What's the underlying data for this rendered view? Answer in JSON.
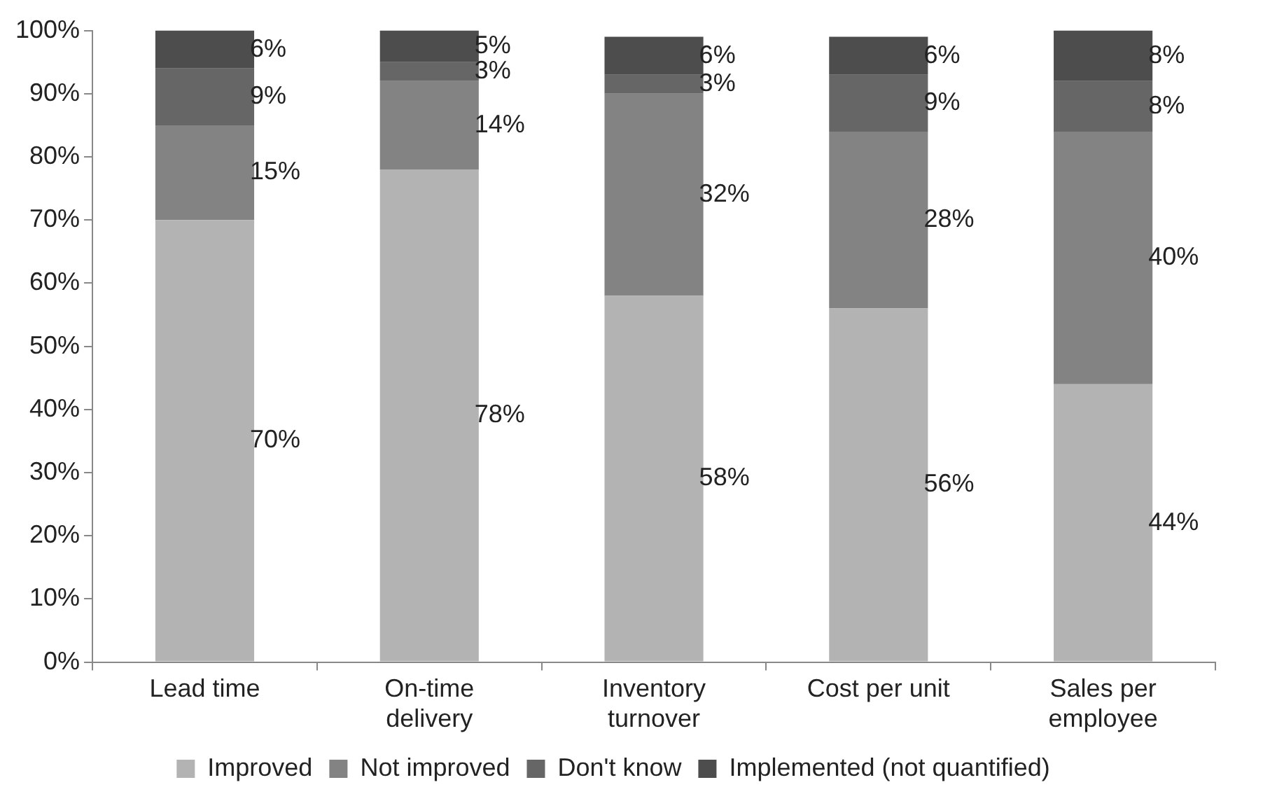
{
  "chart_data": {
    "type": "bar",
    "stacked": true,
    "categories": [
      "Lead time",
      "On-time delivery",
      "Inventory turnover",
      "Cost per unit",
      "Sales per employee"
    ],
    "series": [
      {
        "name": "Improved",
        "color": "#b3b3b3",
        "values": [
          70,
          78,
          58,
          56,
          44
        ],
        "value_labels": [
          "70%",
          "78%",
          "58%",
          "56%",
          "44%"
        ]
      },
      {
        "name": "Not improved",
        "color": "#838383",
        "values": [
          15,
          14,
          32,
          28,
          40
        ],
        "value_labels": [
          "15%",
          "14%",
          "32%",
          "28%",
          "40%"
        ]
      },
      {
        "name": "Don't know",
        "color": "#666666",
        "values": [
          9,
          3,
          3,
          9,
          8
        ],
        "value_labels": [
          "9%",
          "3%",
          "3%",
          "9%",
          "8%"
        ]
      },
      {
        "name": "Implemented (not quantified)",
        "color": "#4d4d4d",
        "values": [
          6,
          5,
          6,
          6,
          8
        ],
        "value_labels": [
          "6%",
          "5%",
          "6%",
          "6%",
          "8%"
        ]
      }
    ],
    "ylim": [
      0,
      100
    ],
    "yticks": [
      {
        "value": 0,
        "label": "0%"
      },
      {
        "value": 10,
        "label": "10%"
      },
      {
        "value": 20,
        "label": "20%"
      },
      {
        "value": 30,
        "label": "30%"
      },
      {
        "value": 40,
        "label": "40%"
      },
      {
        "value": 50,
        "label": "50%"
      },
      {
        "value": 60,
        "label": "60%"
      },
      {
        "value": 70,
        "label": "70%"
      },
      {
        "value": 80,
        "label": "80%"
      },
      {
        "value": 90,
        "label": "90%"
      },
      {
        "value": 100,
        "label": "100%"
      }
    ],
    "grid": false,
    "legend": "bottom"
  }
}
